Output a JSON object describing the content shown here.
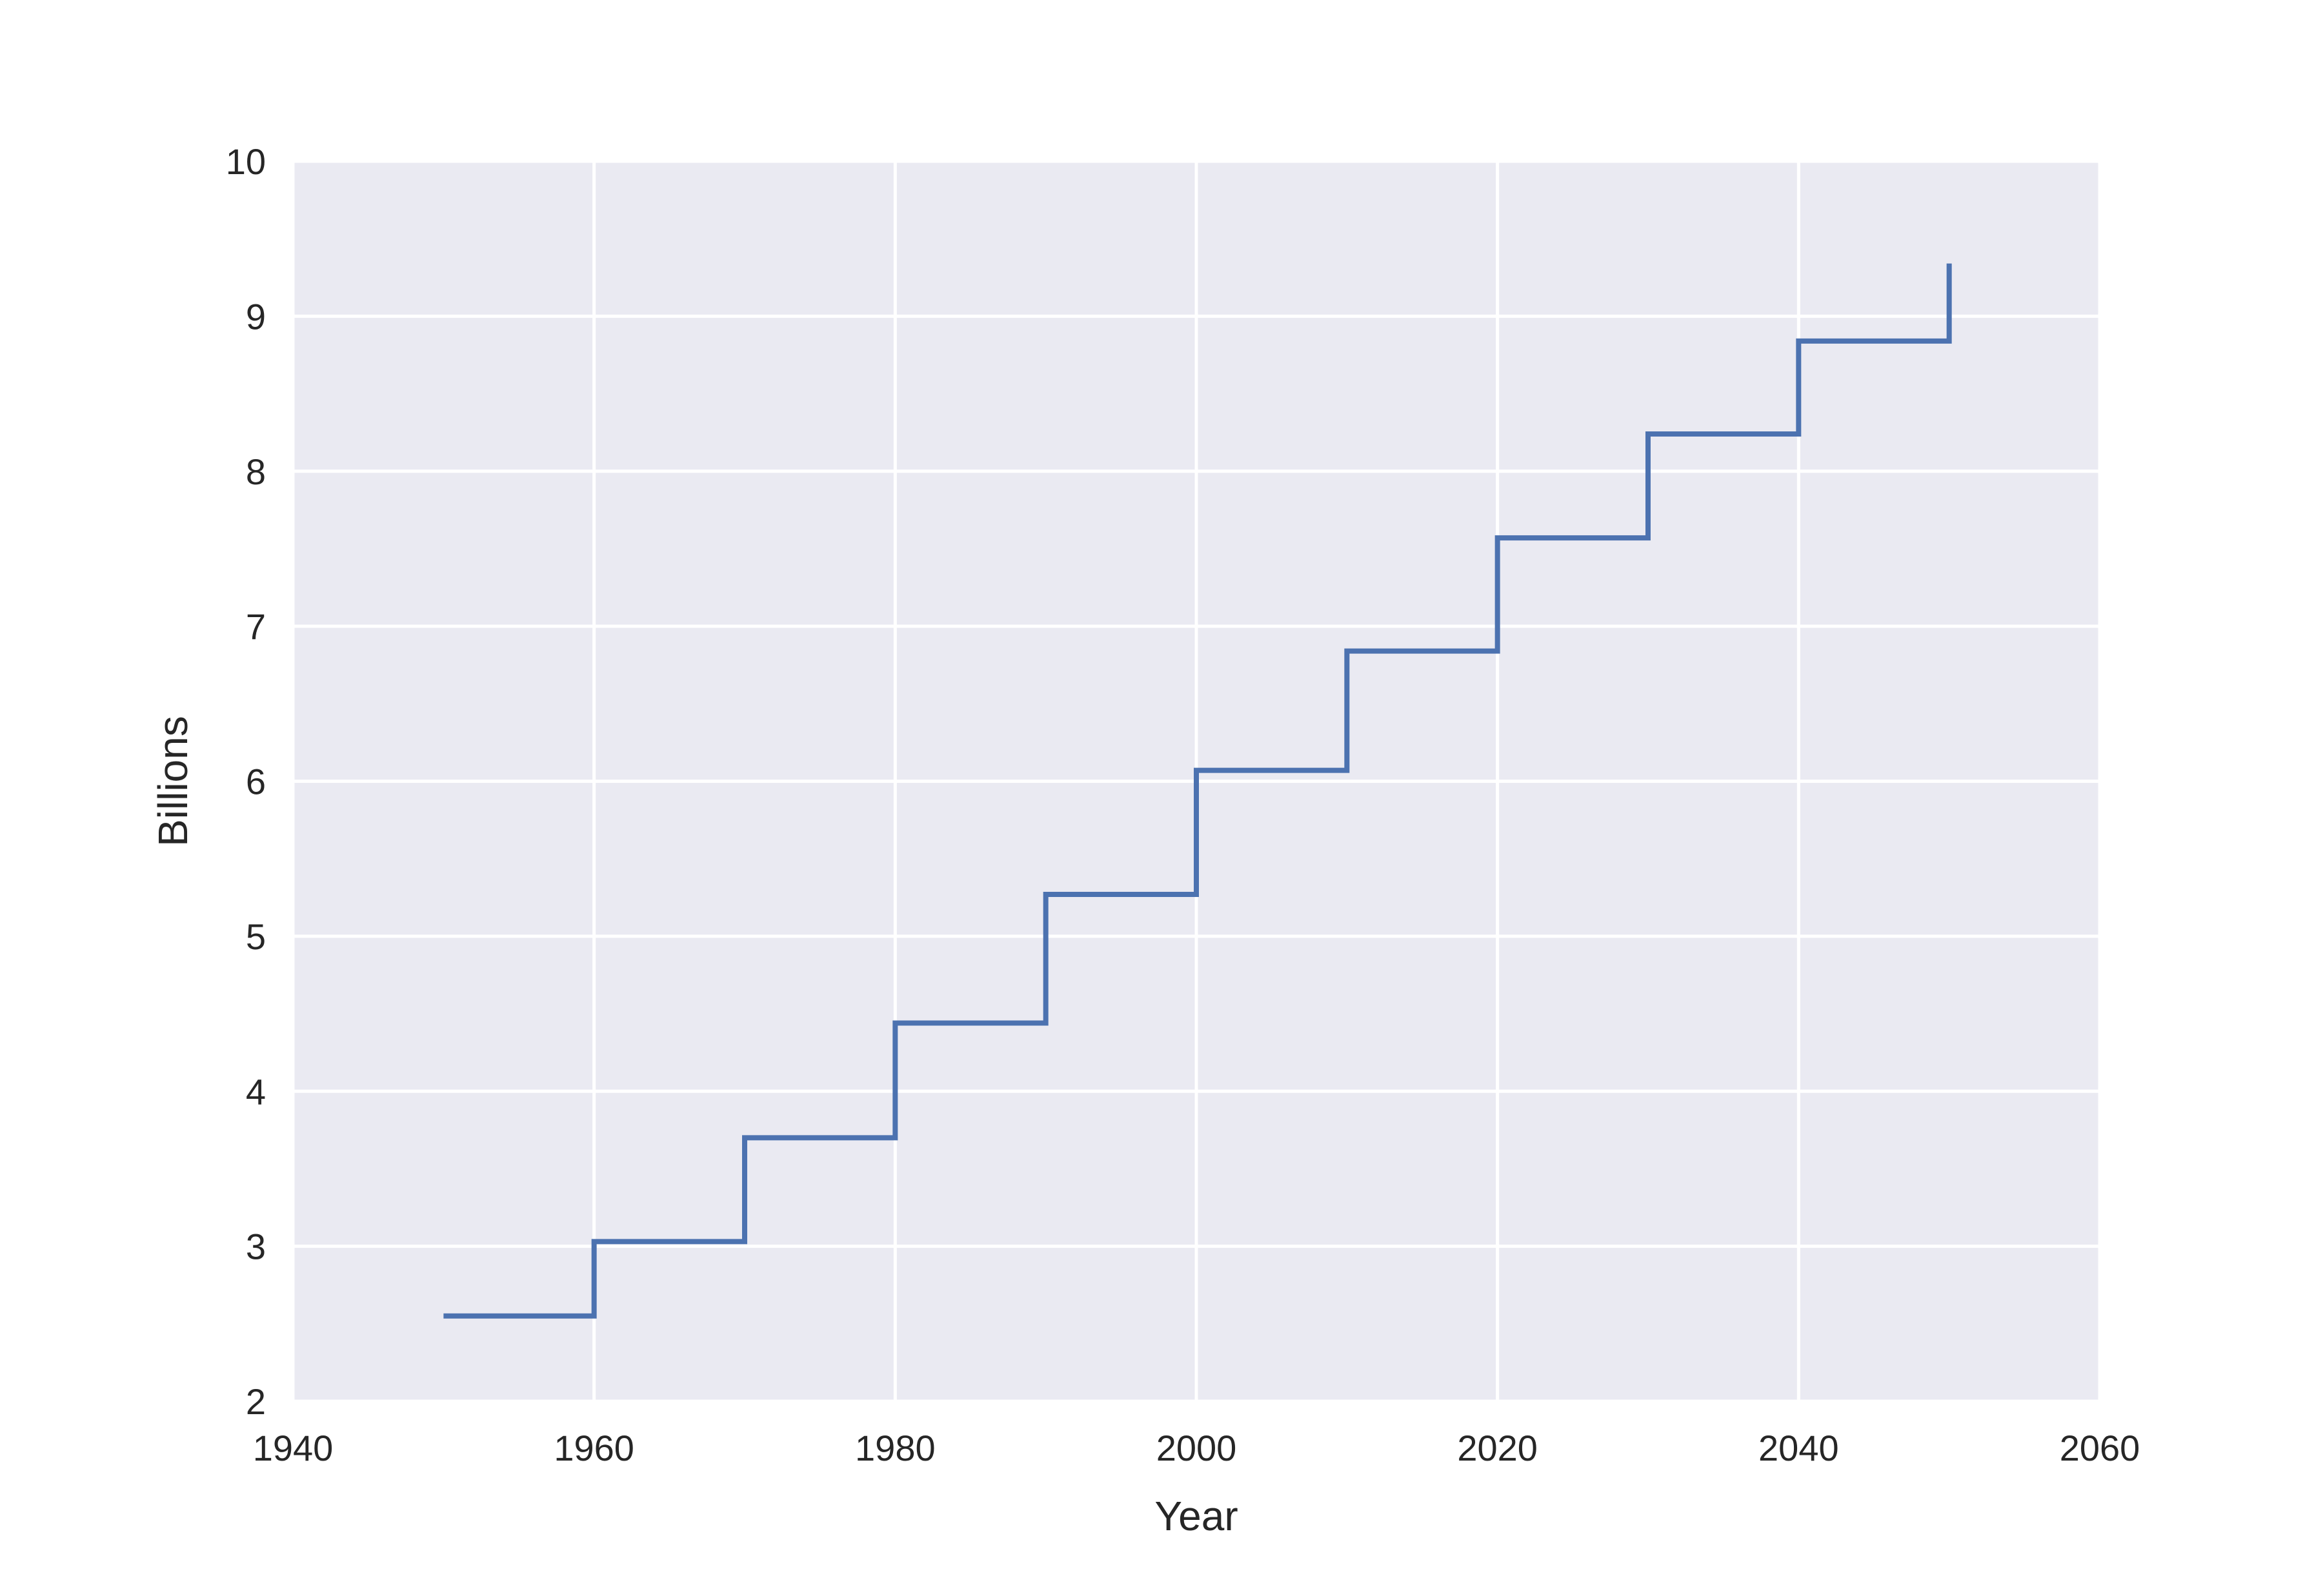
{
  "chart_data": {
    "type": "line",
    "drawstyle": "steps-post",
    "title": "",
    "xlabel": "Year",
    "ylabel": "Billions",
    "xlim": [
      1940,
      2060
    ],
    "ylim": [
      2,
      10
    ],
    "xticks": [
      "1940",
      "1960",
      "1980",
      "2000",
      "2020",
      "2040",
      "2060"
    ],
    "yticks": [
      "2",
      "3",
      "4",
      "5",
      "6",
      "7",
      "8",
      "9",
      "10"
    ],
    "grid": true,
    "legend": "none",
    "series": [
      {
        "x": [
          1950,
          1960,
          1970,
          1980,
          1990,
          2000,
          2010,
          2020,
          2030,
          2040,
          2050
        ],
        "y": [
          2.55,
          3.03,
          3.7,
          4.44,
          5.27,
          6.07,
          6.84,
          7.57,
          8.24,
          8.84,
          9.34
        ],
        "color": "#4c72b0"
      }
    ],
    "colors": {
      "plot_background": "#eaeaf2",
      "gridline": "#ffffff",
      "text": "#262626"
    }
  }
}
